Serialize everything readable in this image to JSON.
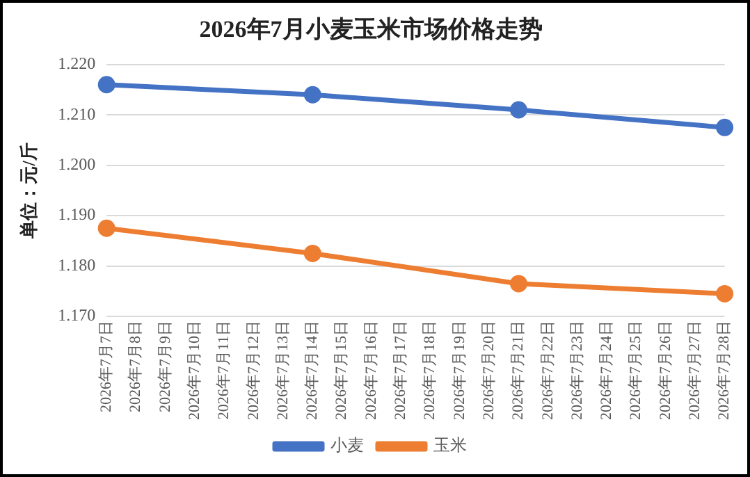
{
  "chart_data": {
    "type": "line",
    "title": "2026年7月小麦玉米市场价格走势",
    "ylabel": "单位：元/斤",
    "categories": [
      "2026年7月7日",
      "2026年7月8日",
      "2026年7月9日",
      "2026年7月10日",
      "2026年7月11日",
      "2026年7月12日",
      "2026年7月13日",
      "2026年7月14日",
      "2026年7月15日",
      "2026年7月16日",
      "2026年7月17日",
      "2026年7月18日",
      "2026年7月19日",
      "2026年7月20日",
      "2026年7月21日",
      "2026年7月22日",
      "2026年7月23日",
      "2026年7月24日",
      "2026年7月25日",
      "2026年7月26日",
      "2026年7月27日",
      "2026年7月28日"
    ],
    "series": [
      {
        "name": "小麦",
        "color": "#4472c4",
        "values": [
          1.216,
          null,
          null,
          null,
          null,
          null,
          null,
          1.214,
          null,
          null,
          null,
          null,
          null,
          null,
          1.211,
          null,
          null,
          null,
          null,
          null,
          null,
          1.2075
        ]
      },
      {
        "name": "玉米",
        "color": "#ed7d31",
        "values": [
          1.1875,
          null,
          null,
          null,
          null,
          null,
          null,
          1.1825,
          null,
          null,
          null,
          null,
          null,
          null,
          1.1765,
          null,
          null,
          null,
          null,
          null,
          null,
          1.1745
        ]
      }
    ],
    "ylim": [
      1.17,
      1.22
    ],
    "yticks": [
      {
        "value": 1.17,
        "label": "1.170"
      },
      {
        "value": 1.18,
        "label": "1.180"
      },
      {
        "value": 1.19,
        "label": "1.190"
      },
      {
        "value": 1.2,
        "label": "1.200"
      },
      {
        "value": 1.21,
        "label": "1.210"
      },
      {
        "value": 1.22,
        "label": "1.220"
      }
    ],
    "grid": "y",
    "legend": "bottom",
    "marker": "circle",
    "line_style": "solid"
  }
}
